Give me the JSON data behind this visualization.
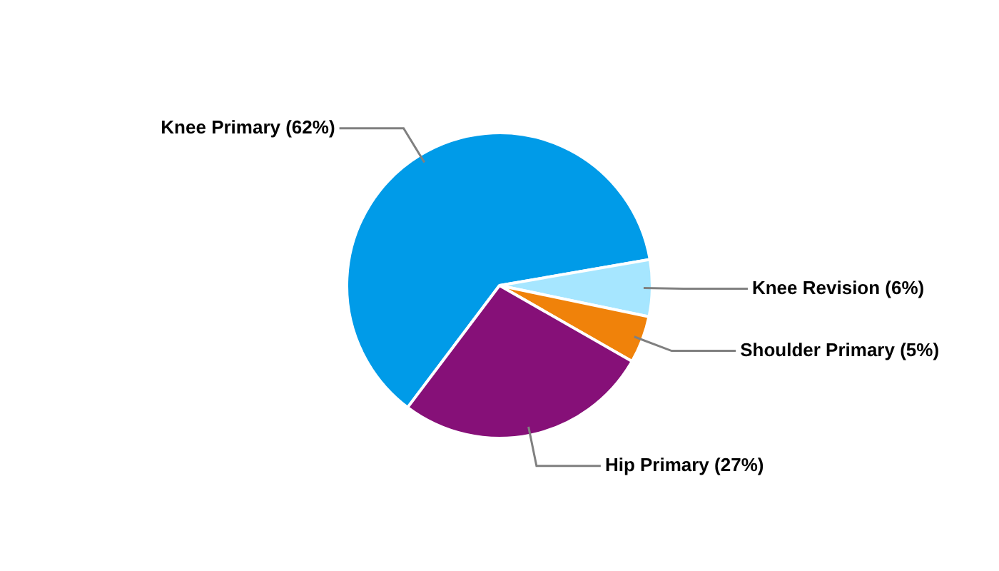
{
  "chart_data": {
    "type": "pie",
    "categories": [
      "Knee Primary (62%)",
      "Knee Revision (6%)",
      "Shoulder Primary (5%)",
      "Hip Primary (27%)"
    ],
    "values": [
      62,
      6,
      5,
      27
    ],
    "colors": [
      "#009be8",
      "#a6e6ff",
      "#f0820a",
      "#861078"
    ],
    "legend": false
  }
}
